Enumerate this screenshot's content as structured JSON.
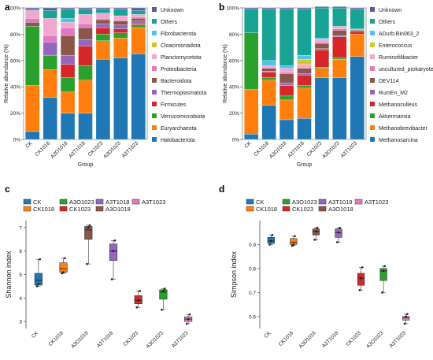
{
  "figure": {
    "colors": {
      "Unknown": "#5a5aa6",
      "Others": "#18a394",
      "Fibrobacterota": "#4fc3e8",
      "Cloacimonadota": "#d2c62e",
      "Planctomycetota": "#f4a7cd",
      "Proteobacteria": "#e377c2",
      "Bacteroidota": "#8c564b",
      "Thermoplasmatota": "#9467bd",
      "Firmicutes": "#d62728",
      "Verrucomicrobiota": "#2ca02c",
      "Euryarchaeota": "#ff7f0e",
      "Halobacterota": "#1f77b4",
      "ADurb.Bin063_2": "#4fc3e8",
      "Enterococcus": "#d2c62e",
      "Ruminofilibacter": "#f4a7cd",
      "uncultured_prokaryote": "#e377c2",
      "DEV114": "#8c564b",
      "RumEn_M2": "#9467bd",
      "Methanoculleus": "#d62728",
      "Akkermansia": "#2ca02c",
      "Methanobrevibacter": "#ff7f0e",
      "Methanosarcina": "#1f77b4"
    }
  },
  "chart_data": [
    {
      "panel": "a",
      "type": "bar",
      "stacked": true,
      "ylabel": "Relative abundance (%)",
      "xlabel": "Group",
      "ylim": [
        0,
        100
      ],
      "yticks": [
        "0%",
        "20%",
        "40%",
        "60%",
        "80%",
        "100%"
      ],
      "categories": [
        "CK",
        "CK1018",
        "A3O1018",
        "A3T1018",
        "CK1023",
        "A3O1023",
        "A3T1023"
      ],
      "legend_position": "right",
      "series": [
        {
          "name": "Halobacterota",
          "values": [
            6,
            32,
            20,
            20,
            61,
            62,
            65
          ]
        },
        {
          "name": "Euryarchaeota",
          "values": [
            35,
            21,
            16,
            25,
            14,
            15,
            20
          ]
        },
        {
          "name": "Verrucomicrobiota",
          "values": [
            45,
            11,
            11,
            11,
            5,
            4,
            2
          ]
        },
        {
          "name": "Firmicutes",
          "values": [
            0,
            0,
            10,
            15,
            5,
            3,
            1
          ]
        },
        {
          "name": "Thermoplasmatota",
          "values": [
            0,
            10,
            7,
            5,
            3,
            3,
            2
          ]
        },
        {
          "name": "Bacteroidota",
          "values": [
            3,
            0,
            15,
            9,
            3,
            3,
            2
          ]
        },
        {
          "name": "Proteobacteria",
          "values": [
            3,
            5,
            6,
            3,
            1,
            1,
            1
          ]
        },
        {
          "name": "Planctomycetota",
          "values": [
            6,
            13,
            4,
            7,
            4,
            3,
            2
          ]
        },
        {
          "name": "Cloacimonadota",
          "values": [
            0,
            0,
            0,
            0,
            0,
            0,
            0
          ]
        },
        {
          "name": "Fibrobacterota",
          "values": [
            0,
            0,
            3,
            0,
            0,
            0,
            0
          ]
        },
        {
          "name": "Others",
          "values": [
            1,
            6,
            7,
            4,
            3,
            5,
            3
          ]
        },
        {
          "name": "Unknown",
          "values": [
            1,
            2,
            1,
            1,
            1,
            1,
            2
          ]
        }
      ]
    },
    {
      "panel": "b",
      "type": "bar",
      "stacked": true,
      "ylabel": "Relative abundance (%)",
      "xlabel": "Group",
      "ylim": [
        0,
        100
      ],
      "yticks": [
        "0%",
        "20%",
        "40%",
        "60%",
        "80%",
        "100%"
      ],
      "categories": [
        "CK",
        "CK1018",
        "A3O1018",
        "A3T1018",
        "CK1023",
        "A3O1023",
        "A3T1023"
      ],
      "legend_position": "right",
      "series": [
        {
          "name": "Methanosarcina",
          "values": [
            4,
            26,
            15,
            16,
            47,
            47,
            63
          ]
        },
        {
          "name": "Methanobrevibacter",
          "values": [
            34,
            19,
            15,
            23,
            7,
            14,
            17
          ]
        },
        {
          "name": "Akkermansia",
          "values": [
            43,
            2,
            3,
            2,
            1,
            1,
            0
          ]
        },
        {
          "name": "Methanoculleus",
          "values": [
            0,
            4,
            8,
            8,
            13,
            16,
            2
          ]
        },
        {
          "name": "RumEn_M2",
          "values": [
            0,
            1,
            2,
            1,
            1,
            1,
            0
          ]
        },
        {
          "name": "DEV114",
          "values": [
            0,
            2,
            7,
            4,
            4,
            4,
            1
          ]
        },
        {
          "name": "uncultured_prokaryote",
          "values": [
            0,
            1,
            1,
            1,
            1,
            1,
            0
          ]
        },
        {
          "name": "Ruminofilibacter",
          "values": [
            0,
            1,
            3,
            2,
            2,
            2,
            1
          ]
        },
        {
          "name": "Enterococcus",
          "values": [
            0,
            0,
            0,
            4,
            0,
            0,
            0
          ]
        },
        {
          "name": "ADurb.Bin063_2",
          "values": [
            0,
            4,
            2,
            3,
            1,
            0,
            0
          ]
        },
        {
          "name": "Others",
          "values": [
            18,
            39,
            43,
            35,
            23,
            14,
            15
          ]
        },
        {
          "name": "Unknown",
          "values": [
            1,
            1,
            1,
            1,
            1,
            1,
            1
          ]
        }
      ]
    },
    {
      "panel": "c",
      "type": "box",
      "ylabel": "Shannon index",
      "ylim": [
        2.7,
        7.3
      ],
      "yticks": [
        3,
        4,
        5,
        6,
        7
      ],
      "categories": [
        "CK",
        "CK1018",
        "A3O1018",
        "A3T1018",
        "CK1023",
        "A3O1023",
        "A3T1023"
      ],
      "legend_position": "top",
      "legend": [
        "CK",
        "CK1018",
        "A3O1023",
        "CK1023",
        "A3T1018",
        "A3O1018",
        "A3T1023"
      ],
      "boxes": [
        {
          "group": "CK",
          "color": "#1f77b4",
          "min": 4.5,
          "q1": 4.55,
          "median": 4.75,
          "q3": 5.05,
          "max": 5.65,
          "points": [
            4.5,
            4.6,
            5.65
          ]
        },
        {
          "group": "CK1018",
          "color": "#ff7f0e",
          "min": 5.05,
          "q1": 5.1,
          "median": 5.25,
          "q3": 5.5,
          "max": 5.7,
          "points": [
            5.05,
            5.1,
            5.7
          ]
        },
        {
          "group": "A3O1018",
          "color": "#8c564b",
          "min": 5.45,
          "q1": 6.5,
          "median": 6.9,
          "q3": 7.05,
          "max": 7.1,
          "points": [
            5.45,
            7.0,
            7.1
          ]
        },
        {
          "group": "A3T1018",
          "color": "#9467bd",
          "min": 4.8,
          "q1": 5.6,
          "median": 6.0,
          "q3": 6.3,
          "max": 6.45,
          "points": [
            4.8,
            6.0,
            6.45
          ]
        },
        {
          "group": "CK1023",
          "color": "#d62728",
          "min": 3.6,
          "q1": 3.75,
          "median": 3.9,
          "q3": 4.1,
          "max": 4.3,
          "points": [
            3.6,
            3.9,
            4.3
          ]
        },
        {
          "group": "A3O1023",
          "color": "#2ca02c",
          "min": 3.5,
          "q1": 3.95,
          "median": 4.25,
          "q3": 4.35,
          "max": 4.4,
          "points": [
            3.5,
            4.3,
            4.4
          ]
        },
        {
          "group": "A3T1023",
          "color": "#e377c2",
          "min": 2.9,
          "q1": 3.0,
          "median": 3.1,
          "q3": 3.2,
          "max": 3.3,
          "points": [
            2.9,
            3.1,
            3.3
          ]
        }
      ]
    },
    {
      "panel": "d",
      "type": "box",
      "ylabel": "Simpson index",
      "ylim": [
        0.55,
        1.0
      ],
      "yticks": [
        0.6,
        0.7,
        0.8,
        0.9
      ],
      "categories": [
        "CK",
        "CK1018",
        "A3O1018",
        "A3T1018",
        "CK1023",
        "A3O1023",
        "A3T1023"
      ],
      "legend_position": "top",
      "legend": [
        "CK",
        "CK1018",
        "A3O1023",
        "CK1023",
        "A3T1018",
        "A3O1018",
        "A3T1023"
      ],
      "boxes": [
        {
          "group": "CK",
          "color": "#1f77b4",
          "min": 0.9,
          "q1": 0.905,
          "median": 0.915,
          "q3": 0.93,
          "max": 0.94,
          "points": [
            0.9,
            0.915,
            0.94
          ]
        },
        {
          "group": "CK1018",
          "color": "#ff7f0e",
          "min": 0.895,
          "q1": 0.9,
          "median": 0.91,
          "q3": 0.925,
          "max": 0.935,
          "points": [
            0.895,
            0.9,
            0.935
          ]
        },
        {
          "group": "A3O1018",
          "color": "#8c564b",
          "min": 0.92,
          "q1": 0.94,
          "median": 0.955,
          "q3": 0.965,
          "max": 0.97,
          "points": [
            0.92,
            0.955,
            0.97
          ]
        },
        {
          "group": "A3T1018",
          "color": "#9467bd",
          "min": 0.91,
          "q1": 0.93,
          "median": 0.95,
          "q3": 0.965,
          "max": 0.97,
          "points": [
            0.91,
            0.95,
            0.97
          ]
        },
        {
          "group": "CK1023",
          "color": "#d62728",
          "min": 0.71,
          "q1": 0.73,
          "median": 0.76,
          "q3": 0.78,
          "max": 0.805,
          "points": [
            0.71,
            0.76,
            0.805
          ]
        },
        {
          "group": "A3O1023",
          "color": "#2ca02c",
          "min": 0.7,
          "q1": 0.75,
          "median": 0.79,
          "q3": 0.8,
          "max": 0.81,
          "points": [
            0.7,
            0.79,
            0.81
          ]
        },
        {
          "group": "A3T1023",
          "color": "#e377c2",
          "min": 0.57,
          "q1": 0.585,
          "median": 0.595,
          "q3": 0.6,
          "max": 0.61,
          "points": [
            0.57,
            0.6,
            0.61
          ]
        }
      ]
    }
  ]
}
